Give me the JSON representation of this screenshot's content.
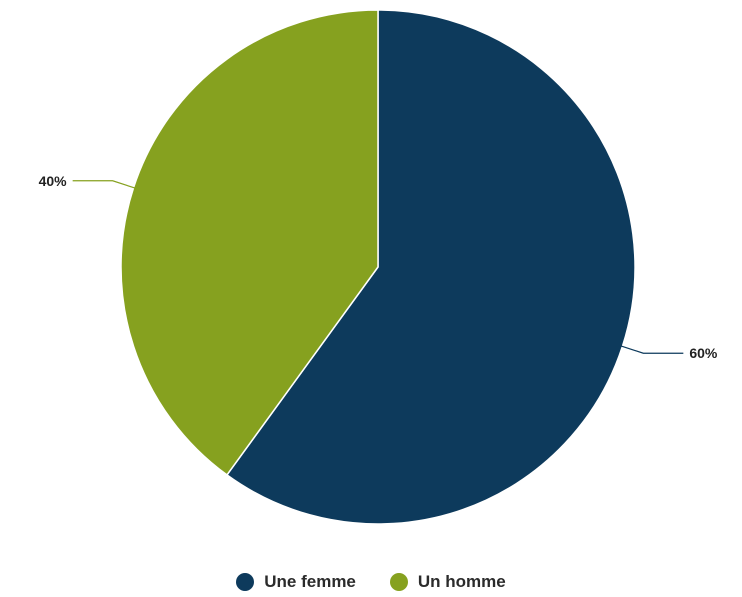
{
  "chart_data": {
    "type": "pie",
    "title": "",
    "start_angle_deg": 0,
    "direction": "clockwise",
    "legend_position": "bottom",
    "slices": [
      {
        "label": "Une femme",
        "value": 60,
        "display": "60%",
        "color": "#0d3a5c"
      },
      {
        "label": "Un homme",
        "value": 40,
        "display": "40%",
        "color": "#86a11f"
      }
    ]
  },
  "legend": {
    "items": [
      {
        "label": "Une femme",
        "color": "#0d3a5c"
      },
      {
        "label": "Un homme",
        "color": "#86a11f"
      }
    ]
  }
}
